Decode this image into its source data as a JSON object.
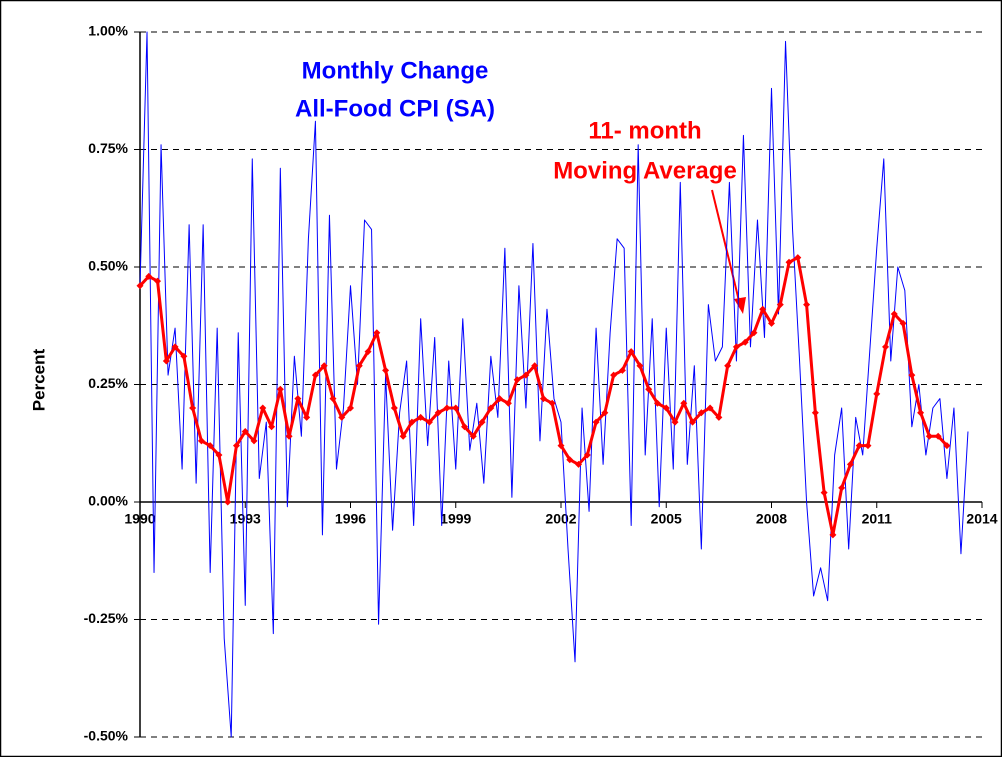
{
  "chart_data": {
    "type": "line",
    "ylabel": "Percent",
    "annotations": [
      "Monthly Change",
      "All-Food CPI (SA)",
      "11- month",
      "Moving Average"
    ],
    "xlim": [
      1990,
      2014
    ],
    "xticks": [
      1990,
      1993,
      1996,
      1999,
      2002,
      2005,
      2008,
      2011,
      2014
    ],
    "ylim": [
      -0.5,
      1.0
    ],
    "yticks": [
      {
        "value": -0.5,
        "label": "-0.50%"
      },
      {
        "value": -0.25,
        "label": "-0.25%"
      },
      {
        "value": 0,
        "label": "0.00%"
      },
      {
        "value": 0.25,
        "label": "0.25%"
      },
      {
        "value": 0.5,
        "label": "0.50%"
      },
      {
        "value": 0.75,
        "label": "0.75%"
      },
      {
        "value": 1.0,
        "label": "1.00%"
      }
    ],
    "grid": true,
    "series": [
      {
        "color": "#0000ff",
        "x": [
          1990.0,
          1990.2,
          1990.4,
          1990.6,
          1990.8,
          1991.0,
          1991.2,
          1991.4,
          1991.6,
          1991.8,
          1992.0,
          1992.2,
          1992.4,
          1992.6,
          1992.8,
          1993.0,
          1993.2,
          1993.4,
          1993.6,
          1993.8,
          1994.0,
          1994.2,
          1994.4,
          1994.6,
          1994.8,
          1995.0,
          1995.2,
          1995.4,
          1995.6,
          1995.8,
          1996.0,
          1996.2,
          1996.4,
          1996.6,
          1996.8,
          1997.0,
          1997.2,
          1997.4,
          1997.6,
          1997.8,
          1998.0,
          1998.2,
          1998.4,
          1998.6,
          1998.8,
          1999.0,
          1999.2,
          1999.4,
          1999.6,
          1999.8,
          2000.0,
          2000.2,
          2000.4,
          2000.6,
          2000.8,
          2001.0,
          2001.2,
          2001.4,
          2001.6,
          2001.8,
          2002.0,
          2002.2,
          2002.4,
          2002.6,
          2002.8,
          2003.0,
          2003.2,
          2003.4,
          2003.6,
          2003.8,
          2004.0,
          2004.2,
          2004.4,
          2004.6,
          2004.8,
          2005.0,
          2005.2,
          2005.4,
          2005.6,
          2005.8,
          2006.0,
          2006.2,
          2006.4,
          2006.6,
          2006.8,
          2007.0,
          2007.2,
          2007.4,
          2007.6,
          2007.8,
          2008.0,
          2008.2,
          2008.4,
          2008.6,
          2008.8,
          2009.0,
          2009.2,
          2009.4,
          2009.6,
          2009.8,
          2010.0,
          2010.2,
          2010.4,
          2010.6,
          2010.8,
          2011.0,
          2011.2,
          2011.4,
          2011.6,
          2011.8,
          2012.0,
          2012.2,
          2012.4,
          2012.6,
          2012.8,
          2013.0,
          2013.2,
          2013.4,
          2013.6
        ],
        "values": [
          0.46,
          1.0,
          -0.15,
          0.76,
          0.27,
          0.37,
          0.07,
          0.59,
          0.04,
          0.59,
          -0.15,
          0.37,
          -0.29,
          -0.5,
          0.36,
          -0.22,
          0.73,
          0.05,
          0.17,
          -0.28,
          0.71,
          -0.01,
          0.31,
          0.14,
          0.56,
          0.81,
          -0.07,
          0.61,
          0.07,
          0.2,
          0.46,
          0.25,
          0.6,
          0.58,
          -0.26,
          0.27,
          -0.06,
          0.19,
          0.3,
          -0.05,
          0.39,
          0.12,
          0.35,
          -0.05,
          0.3,
          0.07,
          0.39,
          0.11,
          0.21,
          0.04,
          0.31,
          0.18,
          0.54,
          0.01,
          0.46,
          0.2,
          0.55,
          0.13,
          0.41,
          0.22,
          0.17,
          -0.1,
          -0.34,
          0.2,
          -0.02,
          0.37,
          0.08,
          0.36,
          0.56,
          0.54,
          -0.05,
          0.76,
          0.1,
          0.39,
          -0.01,
          0.37,
          0.07,
          0.68,
          0.08,
          0.29,
          -0.1,
          0.42,
          0.3,
          0.33,
          0.68,
          0.3,
          0.78,
          0.33,
          0.6,
          0.35,
          0.88,
          0.4,
          0.98,
          0.58,
          0.3,
          0.0,
          -0.2,
          -0.14,
          -0.21,
          0.1,
          0.2,
          -0.1,
          0.18,
          0.1,
          0.32,
          0.54,
          0.73,
          0.3,
          0.5,
          0.45,
          0.16,
          0.25,
          0.1,
          0.2,
          0.22,
          0.05,
          0.2,
          -0.11,
          0.15
        ]
      },
      {
        "color": "#ff0000",
        "x": [
          1990.0,
          1990.25,
          1990.5,
          1990.75,
          1991.0,
          1991.25,
          1991.5,
          1991.75,
          1992.0,
          1992.25,
          1992.5,
          1992.75,
          1993.0,
          1993.25,
          1993.5,
          1993.75,
          1994.0,
          1994.25,
          1994.5,
          1994.75,
          1995.0,
          1995.25,
          1995.5,
          1995.75,
          1996.0,
          1996.25,
          1996.5,
          1996.75,
          1997.0,
          1997.25,
          1997.5,
          1997.75,
          1998.0,
          1998.25,
          1998.5,
          1998.75,
          1999.0,
          1999.25,
          1999.5,
          1999.75,
          2000.0,
          2000.25,
          2000.5,
          2000.75,
          2001.0,
          2001.25,
          2001.5,
          2001.75,
          2002.0,
          2002.25,
          2002.5,
          2002.75,
          2003.0,
          2003.25,
          2003.5,
          2003.75,
          2004.0,
          2004.25,
          2004.5,
          2004.75,
          2005.0,
          2005.25,
          2005.5,
          2005.75,
          2006.0,
          2006.25,
          2006.5,
          2006.75,
          2007.0,
          2007.25,
          2007.5,
          2007.75,
          2008.0,
          2008.25,
          2008.5,
          2008.75,
          2009.0,
          2009.25,
          2009.5,
          2009.75,
          2010.0,
          2010.25,
          2010.5,
          2010.75,
          2011.0,
          2011.25,
          2011.5,
          2011.75,
          2012.0,
          2012.25,
          2012.5,
          2012.75,
          2013.0
        ],
        "values": [
          0.46,
          0.48,
          0.47,
          0.3,
          0.33,
          0.31,
          0.2,
          0.13,
          0.12,
          0.1,
          0.0,
          0.12,
          0.15,
          0.13,
          0.2,
          0.16,
          0.24,
          0.14,
          0.22,
          0.18,
          0.27,
          0.29,
          0.22,
          0.18,
          0.2,
          0.29,
          0.32,
          0.36,
          0.28,
          0.2,
          0.14,
          0.17,
          0.18,
          0.17,
          0.19,
          0.2,
          0.2,
          0.16,
          0.14,
          0.17,
          0.2,
          0.22,
          0.21,
          0.26,
          0.27,
          0.29,
          0.22,
          0.21,
          0.12,
          0.09,
          0.08,
          0.1,
          0.17,
          0.19,
          0.27,
          0.28,
          0.32,
          0.29,
          0.24,
          0.21,
          0.2,
          0.17,
          0.21,
          0.17,
          0.19,
          0.2,
          0.18,
          0.29,
          0.33,
          0.34,
          0.36,
          0.41,
          0.38,
          0.42,
          0.51,
          0.52,
          0.42,
          0.19,
          0.02,
          -0.07,
          0.03,
          0.08,
          0.12,
          0.12,
          0.23,
          0.33,
          0.4,
          0.38,
          0.27,
          0.19,
          0.14,
          0.14,
          0.12
        ]
      }
    ]
  }
}
